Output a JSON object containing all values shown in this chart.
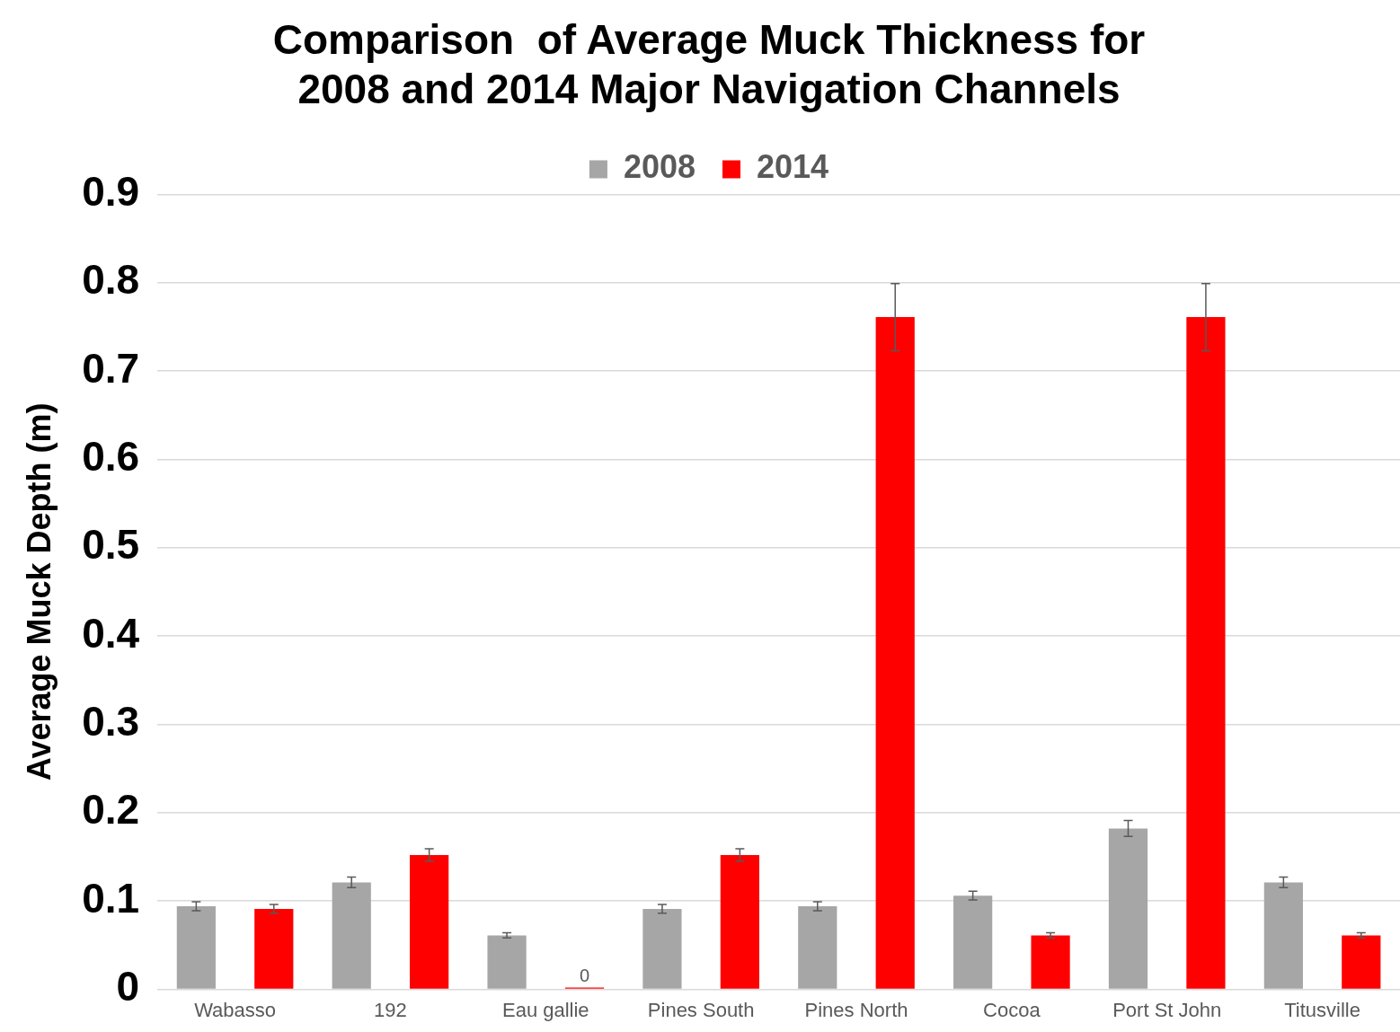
{
  "chart_data": {
    "type": "bar",
    "title": "Comparison  of Average Muck Thickness for\n2008 and 2014 Major Navigation Channels",
    "ylabel": "Average Muck Depth (m)",
    "categories": [
      "Wabasso",
      "192",
      "Eau gallie",
      "Pines South",
      "Pines North",
      "Cocoa",
      "Port St John",
      "Titusville"
    ],
    "series": [
      {
        "name": "2008",
        "color": "#a6a6a6",
        "values": [
          0.094,
          0.121,
          0.061,
          0.091,
          0.094,
          0.106,
          0.182,
          0.121
        ],
        "errors": [
          0.005,
          0.006,
          0.003,
          0.005,
          0.005,
          0.005,
          0.009,
          0.006
        ]
      },
      {
        "name": "2014",
        "color": "#ff0000",
        "values": [
          0.091,
          0.152,
          0,
          0.152,
          0.761,
          0.061,
          0.761,
          0.061
        ],
        "errors": [
          0.005,
          0.007,
          null,
          0.007,
          0.038,
          0.003,
          0.038,
          0.003
        ],
        "value_labels": [
          null,
          null,
          "0",
          null,
          null,
          null,
          null,
          null
        ]
      }
    ],
    "ylim": [
      0,
      0.9
    ],
    "yticks": [
      0,
      0.1,
      0.2,
      0.3,
      0.4,
      0.5,
      0.6,
      0.7,
      0.8,
      0.9
    ],
    "grid": "y",
    "legend": "top"
  }
}
